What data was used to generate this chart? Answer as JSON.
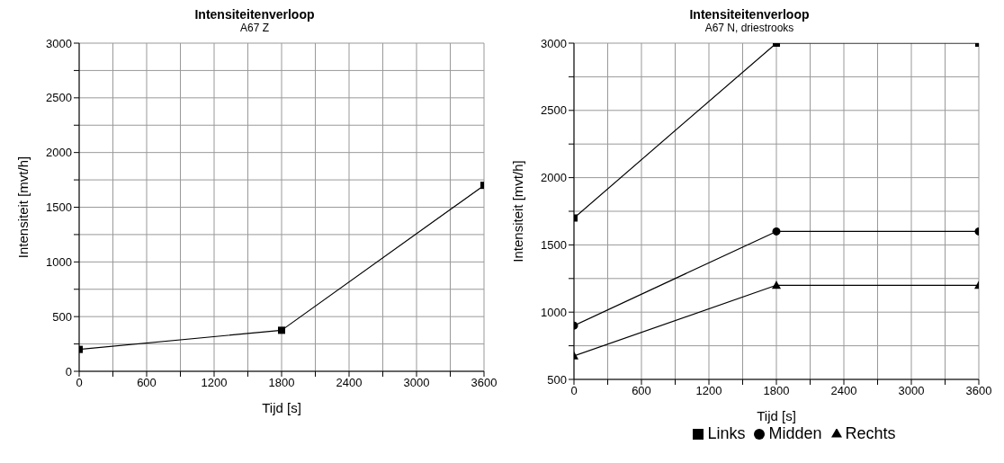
{
  "chart_data": [
    {
      "type": "line",
      "title": "Intensiteitenverloop",
      "subtitle": "A67 Z",
      "xlabel": "Tijd [s]",
      "ylabel": "Intensiteit [mvt/h]",
      "x": [
        0,
        1800,
        3600
      ],
      "series": [
        {
          "color": "#000000",
          "values": [
            200,
            375,
            1700
          ],
          "marker": "square"
        }
      ],
      "xlim": [
        0,
        3600
      ],
      "xticks": [
        0,
        {
          "value": 300,
          "label": null
        },
        600,
        {
          "value": 900,
          "label": null
        },
        1200,
        {
          "value": 1500,
          "label": null
        },
        1800,
        {
          "value": 2100,
          "label": null
        },
        2400,
        {
          "value": 2700,
          "label": null
        },
        3000,
        {
          "value": 3300,
          "label": null
        },
        3600
      ],
      "ylim": [
        0,
        3000
      ],
      "yticks": [
        0,
        {
          "value": 250,
          "label": null
        },
        500,
        {
          "value": 750,
          "label": null
        },
        1000,
        {
          "value": 1250,
          "label": null
        },
        1500,
        {
          "value": 1750,
          "label": null
        },
        2000,
        {
          "value": 2250,
          "label": null
        },
        2500,
        {
          "value": 2750,
          "label": null
        },
        3000
      ],
      "grid": true,
      "legend": false,
      "line_style": "solid"
    },
    {
      "type": "line",
      "title": "Intensiteitenverloop",
      "subtitle": "A67 N, driestrooks",
      "xlabel": "Tijd [s]",
      "ylabel": "Intensiteit [mvt/h]",
      "x": [
        0,
        1800,
        3600
      ],
      "series": [
        {
          "name": "Links",
          "color": "#000000",
          "values": [
            1700,
            3000,
            3000
          ],
          "marker": "square"
        },
        {
          "name": "Midden",
          "color": "#000000",
          "values": [
            900,
            1600,
            1600
          ],
          "marker": "circle"
        },
        {
          "name": "Rechts",
          "color": "#000000",
          "values": [
            675,
            1200,
            1200
          ],
          "marker": "triangle"
        }
      ],
      "xlim": [
        0,
        3600
      ],
      "xticks": [
        0,
        {
          "value": 300,
          "label": null
        },
        600,
        {
          "value": 900,
          "label": null
        },
        1200,
        {
          "value": 1500,
          "label": null
        },
        1800,
        {
          "value": 2100,
          "label": null
        },
        2400,
        {
          "value": 2700,
          "label": null
        },
        3000,
        {
          "value": 3300,
          "label": null
        },
        3600
      ],
      "ylim": [
        500,
        3000
      ],
      "yticks": [
        500,
        {
          "value": 750,
          "label": null
        },
        1000,
        {
          "value": 1250,
          "label": null
        },
        1500,
        {
          "value": 1750,
          "label": null
        },
        2000,
        {
          "value": 2250,
          "label": null
        },
        2500,
        {
          "value": 2750,
          "label": null
        },
        3000
      ],
      "grid": true,
      "legend": "bottom",
      "line_style": "solid"
    }
  ]
}
